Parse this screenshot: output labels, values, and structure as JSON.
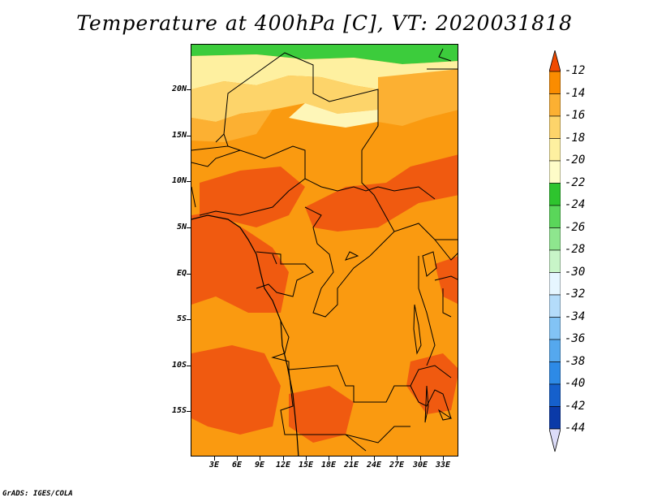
{
  "title": "Temperature at 400hPa [C], VT: 2020031818",
  "credit": "GrADS: IGES/COLA",
  "map": {
    "lat_labels": [
      "20N",
      "15N",
      "10N",
      "5N",
      "EQ",
      "5S",
      "10S",
      "15S"
    ],
    "lon_labels": [
      "3E",
      "6E",
      "9E",
      "12E",
      "15E",
      "18E",
      "21E",
      "24E",
      "27E",
      "30E",
      "33E"
    ]
  },
  "legend": {
    "unit": "C",
    "levels": [
      "-12",
      "-14",
      "-16",
      "-18",
      "-20",
      "-22",
      "-24",
      "-26",
      "-28",
      "-30",
      "-32",
      "-34",
      "-36",
      "-38",
      "-40",
      "-42",
      "-44"
    ],
    "colors": [
      "#f04a00",
      "#fa8c00",
      "#fcb032",
      "#fdd46a",
      "#fef0a0",
      "#fefcc8",
      "#2ec42e",
      "#5ad65a",
      "#8ee68e",
      "#c8f5c8",
      "#e6f6ff",
      "#b4dcfa",
      "#82c3f5",
      "#55a8ee",
      "#2d8ae6",
      "#1560cc",
      "#0a3aa8",
      "#000070"
    ],
    "top_arrow_color": "#f04a00",
    "bottom_arrow_color": "#dcdcf8"
  }
}
